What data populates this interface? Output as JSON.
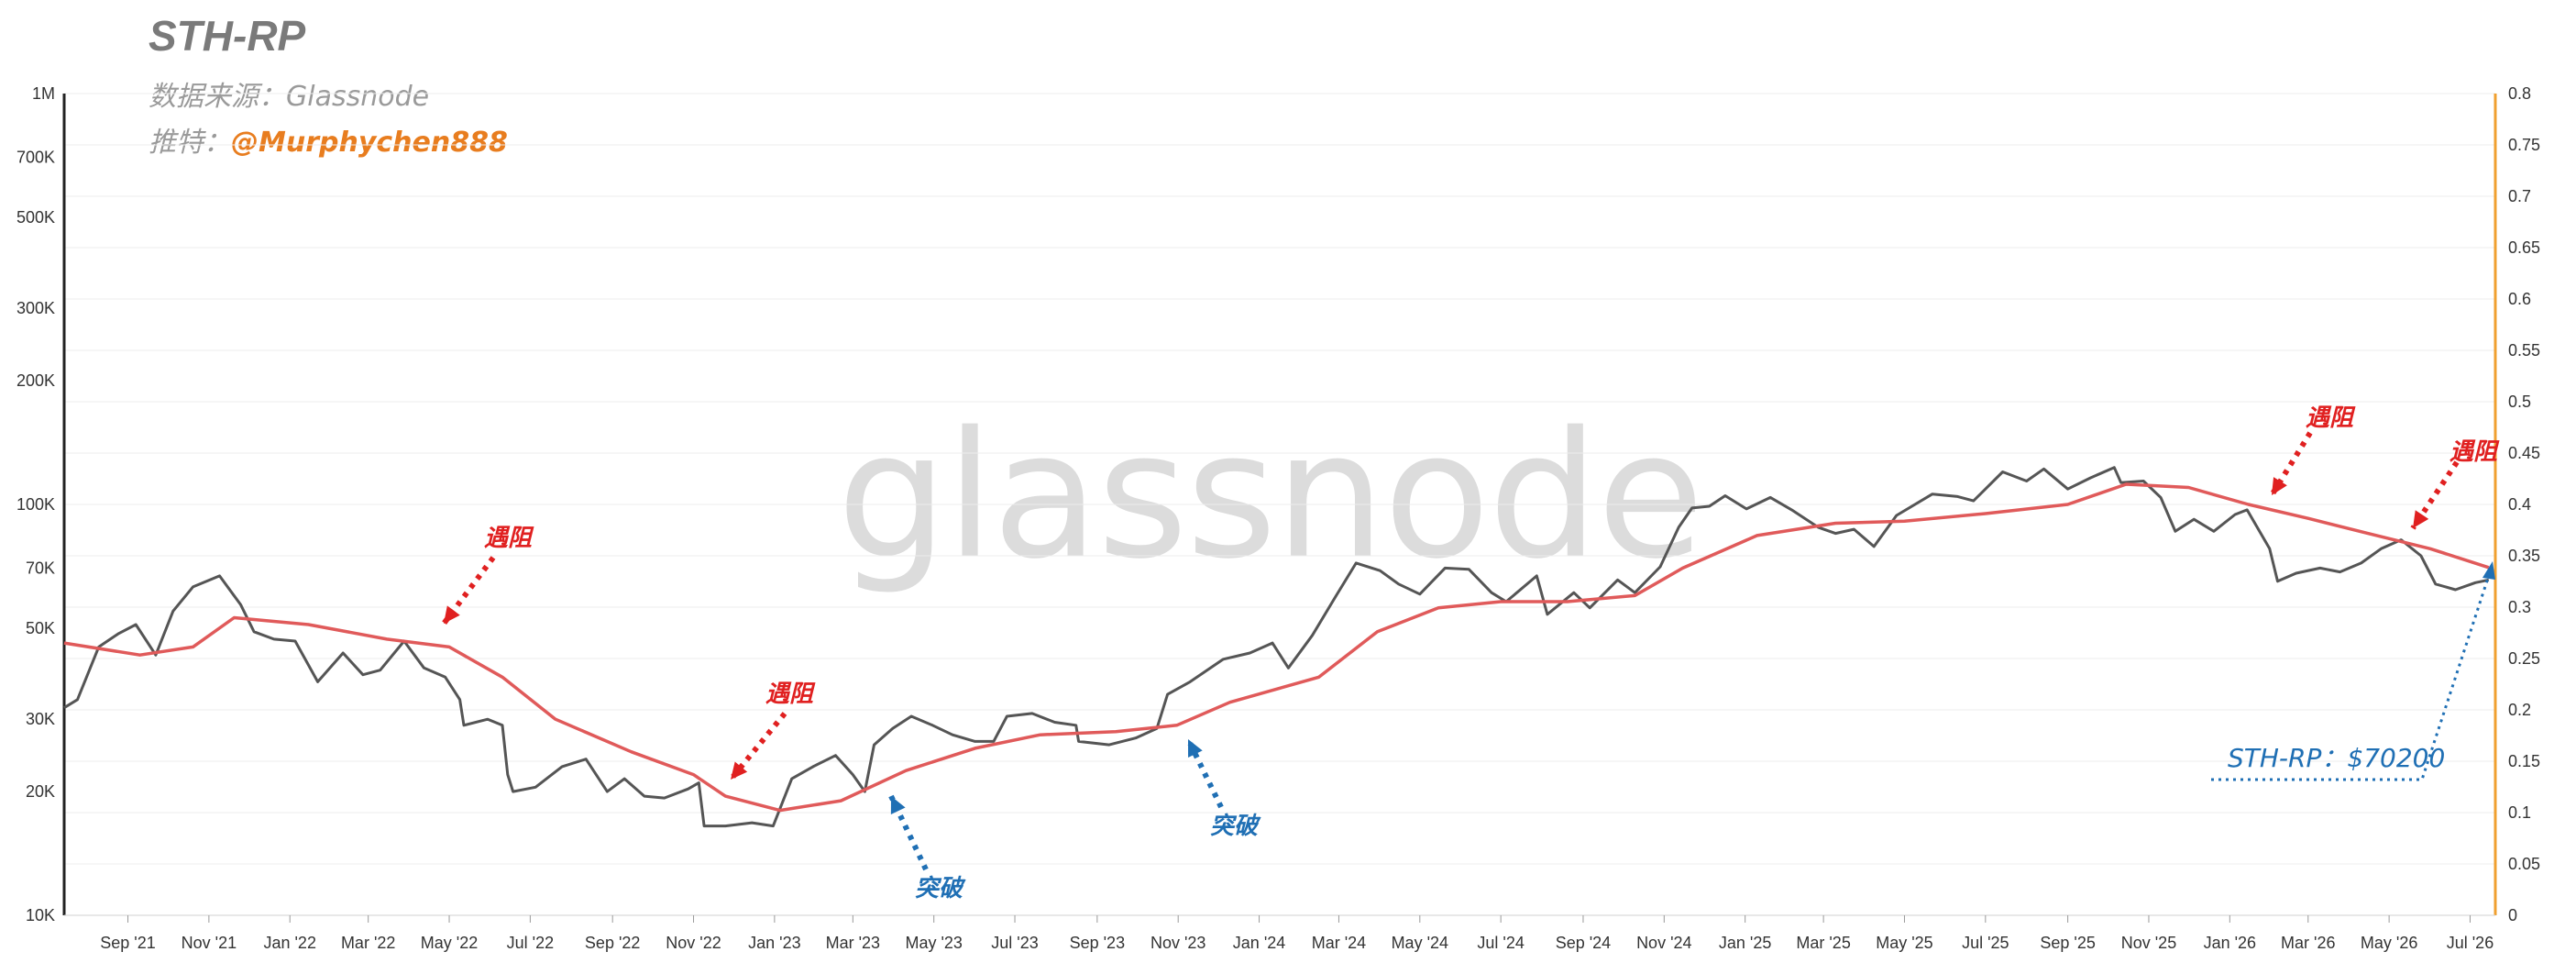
{
  "header": {
    "title": "STH-RP",
    "source_label": "数据来源：",
    "source_value": "Glassnode",
    "twitter_label": "推特：",
    "twitter_handle": "@Murphychen888"
  },
  "watermark": "glassnode",
  "annotations": [
    {
      "id": "resist-1",
      "text": "遇阻",
      "kind": "resistance"
    },
    {
      "id": "resist-2",
      "text": "遇阻",
      "kind": "resistance"
    },
    {
      "id": "break-1",
      "text": "突破",
      "kind": "breakout"
    },
    {
      "id": "break-2",
      "text": "突破",
      "kind": "breakout"
    },
    {
      "id": "resist-3",
      "text": "遇阻",
      "kind": "resistance"
    },
    {
      "id": "resist-4",
      "text": "遇阻",
      "kind": "resistance"
    }
  ],
  "sth_rp_label": "STH-RP：$70200",
  "colors": {
    "price_line": "#555555",
    "sth_rp_line": "#e05a5a",
    "resistance_arrow": "#e02020",
    "breakout_arrow": "#1f6fb4",
    "right_axis": "#f0a030",
    "grid": "#ececec"
  },
  "chart_data": {
    "type": "line",
    "title": "STH-RP",
    "x_tick_labels": [
      "Sep '21",
      "Nov '21",
      "Jan '22",
      "Mar '22",
      "May '22",
      "Jul '22",
      "Sep '22",
      "Nov '22",
      "Jan '23",
      "Mar '23",
      "May '23",
      "Jul '23",
      "Sep '23",
      "Nov '23",
      "Jan '24",
      "Mar '24",
      "May '24",
      "Jul '24",
      "Sep '24",
      "Nov '24",
      "Jan '25",
      "Mar '25",
      "May '25",
      "Jul '25",
      "Sep '25",
      "Nov '25",
      "Jan '26",
      "Mar '26",
      "May '26",
      "Jul '26"
    ],
    "y_left": {
      "scale": "log",
      "range": [
        10000,
        1000000
      ],
      "tick_values": [
        10000,
        20000,
        30000,
        50000,
        70000,
        100000,
        200000,
        300000,
        500000,
        700000,
        1000000
      ],
      "tick_labels": [
        "10K",
        "20K",
        "30K",
        "50K",
        "70K",
        "100K",
        "200K",
        "300K",
        "500K",
        "700K",
        "1M"
      ]
    },
    "y_right": {
      "scale": "linear",
      "range": [
        0,
        0.8
      ],
      "tick_labels": [
        "0",
        "0.05",
        "0.1",
        "0.15",
        "0.2",
        "0.25",
        "0.3",
        "0.35",
        "0.4",
        "0.45",
        "0.5",
        "0.55",
        "0.6",
        "0.65",
        "0.7",
        "0.75",
        "0.8"
      ]
    },
    "x_range": [
      "2021-07-15",
      "2026-07-20"
    ],
    "series": [
      {
        "key": "price",
        "dates": [
          "2021-07-15",
          "2021-07-25",
          "2021-08-10",
          "2021-08-25",
          "2021-09-07",
          "2021-09-22",
          "2021-10-05",
          "2021-10-20",
          "2021-11-09",
          "2021-11-25",
          "2021-12-05",
          "2021-12-20",
          "2022-01-05",
          "2022-01-22",
          "2022-02-10",
          "2022-02-25",
          "2022-03-10",
          "2022-03-28",
          "2022-04-12",
          "2022-04-28",
          "2022-05-09",
          "2022-05-12",
          "2022-05-30",
          "2022-06-10",
          "2022-06-14",
          "2022-06-18",
          "2022-07-05",
          "2022-07-25",
          "2022-08-12",
          "2022-08-28",
          "2022-09-10",
          "2022-09-25",
          "2022-10-10",
          "2022-10-28",
          "2022-11-05",
          "2022-11-09",
          "2022-11-25",
          "2022-12-15",
          "2022-12-31",
          "2023-01-14",
          "2023-01-30",
          "2023-02-16",
          "2023-03-01",
          "2023-03-10",
          "2023-03-17",
          "2023-03-31",
          "2023-04-14",
          "2023-04-30",
          "2023-05-15",
          "2023-06-01",
          "2023-06-15",
          "2023-06-25",
          "2023-07-14",
          "2023-07-31",
          "2023-08-16",
          "2023-08-18",
          "2023-09-10",
          "2023-09-30",
          "2023-10-16",
          "2023-10-24",
          "2023-11-10",
          "2023-12-05",
          "2023-12-25",
          "2024-01-11",
          "2024-01-23",
          "2024-02-10",
          "2024-02-28",
          "2024-03-14",
          "2024-04-01",
          "2024-04-15",
          "2024-05-01",
          "2024-05-20",
          "2024-06-07",
          "2024-06-24",
          "2024-07-05",
          "2024-07-28",
          "2024-08-05",
          "2024-08-25",
          "2024-09-06",
          "2024-09-27",
          "2024-10-10",
          "2024-10-29",
          "2024-11-12",
          "2024-11-22",
          "2024-12-05",
          "2024-12-17",
          "2025-01-02",
          "2025-01-20",
          "2025-02-05",
          "2025-02-25",
          "2025-03-10",
          "2025-03-24",
          "2025-04-08",
          "2025-04-25",
          "2025-05-22",
          "2025-06-10",
          "2025-06-22",
          "2025-07-14",
          "2025-08-01",
          "2025-08-14",
          "2025-09-01",
          "2025-09-18",
          "2025-10-06",
          "2025-10-11",
          "2025-10-28",
          "2025-11-10",
          "2025-11-21",
          "2025-12-05",
          "2025-12-20",
          "2026-01-05",
          "2026-01-14",
          "2026-01-31",
          "2026-02-06",
          "2026-02-20",
          "2026-03-10",
          "2026-03-25",
          "2026-04-10",
          "2026-04-25",
          "2026-05-10",
          "2026-05-25",
          "2026-06-05",
          "2026-06-20",
          "2026-07-05",
          "2026-07-15"
        ],
        "values": [
          32000,
          33500,
          45000,
          48500,
          51000,
          43000,
          55000,
          63000,
          67000,
          57000,
          49000,
          47000,
          46500,
          37000,
          43500,
          38500,
          39500,
          46500,
          40000,
          38000,
          33500,
          29000,
          30000,
          29000,
          22000,
          20000,
          20500,
          23000,
          24000,
          20000,
          21500,
          19500,
          19300,
          20300,
          21000,
          16500,
          16500,
          16800,
          16500,
          21500,
          23000,
          24500,
          22000,
          20000,
          26000,
          28500,
          30500,
          29000,
          27500,
          26500,
          26500,
          30500,
          31000,
          29500,
          29000,
          26500,
          26000,
          27000,
          28500,
          34500,
          37000,
          42000,
          43500,
          46000,
          40000,
          48000,
          60000,
          72000,
          69000,
          64000,
          60500,
          70000,
          69500,
          61000,
          58000,
          67000,
          54000,
          61000,
          56000,
          65500,
          61000,
          70500,
          88000,
          98000,
          99000,
          105000,
          97500,
          104000,
          97000,
          88000,
          85000,
          87000,
          79000,
          94000,
          106000,
          104500,
          102000,
          120000,
          114000,
          122000,
          109000,
          116000,
          123000,
          113000,
          114000,
          104000,
          86000,
          92000,
          86000,
          94500,
          97000,
          78000,
          65000,
          68000,
          70000,
          68500,
          72000,
          78000,
          82000,
          75000,
          64000,
          62000,
          64500,
          65500
        ]
      },
      {
        "key": "sth_rp",
        "dates": [
          "2021-07-15",
          "2021-09-10",
          "2021-10-20",
          "2021-11-20",
          "2022-01-15",
          "2022-03-15",
          "2022-05-01",
          "2022-06-10",
          "2022-07-20",
          "2022-09-15",
          "2022-11-01",
          "2022-11-25",
          "2023-01-05",
          "2023-02-20",
          "2023-04-10",
          "2023-06-01",
          "2023-07-20",
          "2023-09-15",
          "2023-10-31",
          "2023-12-10",
          "2024-02-15",
          "2024-03-30",
          "2024-05-15",
          "2024-07-01",
          "2024-08-20",
          "2024-10-10",
          "2024-11-15",
          "2025-01-10",
          "2025-03-10",
          "2025-05-01",
          "2025-07-01",
          "2025-09-01",
          "2025-10-15",
          "2025-12-01",
          "2026-01-15",
          "2026-03-01",
          "2026-04-15",
          "2026-06-01",
          "2026-07-15"
        ],
        "values": [
          46000,
          43000,
          45000,
          53000,
          51000,
          47000,
          45000,
          38000,
          30000,
          25000,
          22000,
          19500,
          18000,
          19000,
          22500,
          25500,
          27500,
          28000,
          29000,
          33000,
          38000,
          49000,
          56000,
          58000,
          58000,
          60000,
          70000,
          84000,
          90000,
          91000,
          95000,
          100000,
          112000,
          110000,
          100000,
          92500,
          85000,
          78000,
          70200
        ]
      }
    ]
  }
}
